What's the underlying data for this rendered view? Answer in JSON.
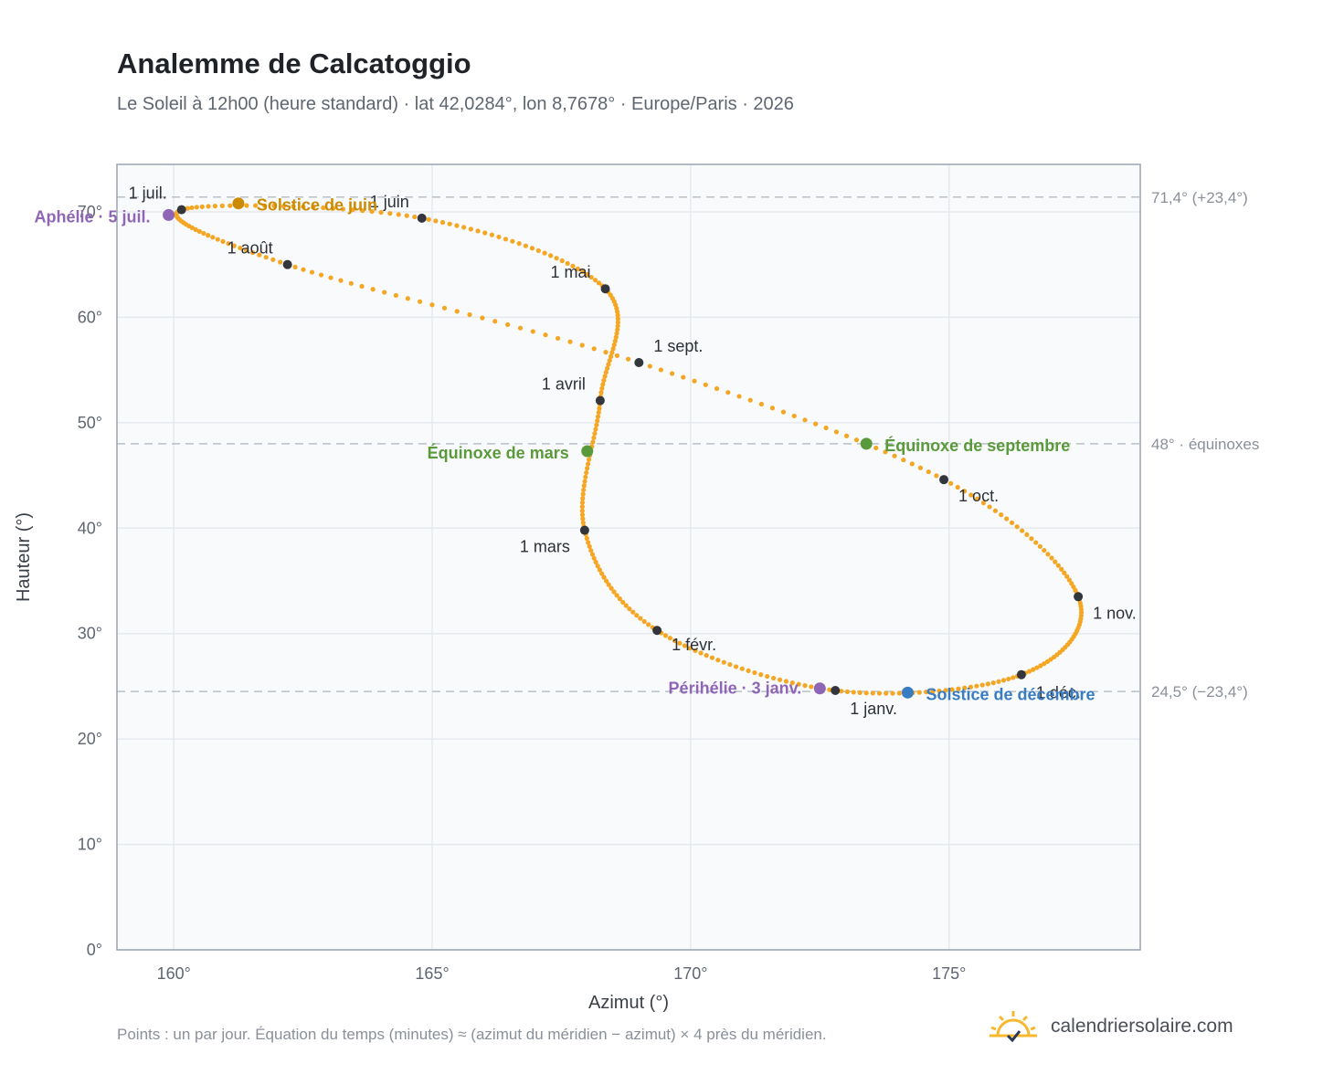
{
  "header": {
    "title": "Analemme de Calcatoggio",
    "subtitle": "Le Soleil à 12h00 (heure standard) · lat 42,0284°, lon 8,7678° · Europe/Paris · 2026"
  },
  "footer": {
    "note": "Points : un par jour. Équation du temps (minutes) ≈ (azimut du méridien − azimut) × 4 près du méridien.",
    "brand": "calendriersolaire.com"
  },
  "colors": {
    "curve": "#f5a623",
    "month_dot": "#33373d",
    "solstice_june": "#cc8a00",
    "solstice_december": "#3a7cc2",
    "equinox": "#5a9a3a",
    "apsis": "#8f65b5",
    "reference_line": "#b9c0c8",
    "plot_bg": "#f8fafc",
    "grid": "#e6eaee",
    "frame": "#9aa4b2"
  },
  "chart_data": {
    "type": "scatter",
    "xlabel": "Azimut (°)",
    "ylabel": "Hauteur (°)",
    "xlim": [
      158.9,
      178.7
    ],
    "ylim": [
      0,
      74.5
    ],
    "x_ticks": [
      160,
      165,
      170,
      175
    ],
    "x_tick_labels": [
      "160°",
      "165°",
      "170°",
      "175°"
    ],
    "y_ticks": [
      0,
      10,
      20,
      30,
      40,
      50,
      60,
      70
    ],
    "y_tick_labels": [
      "0°",
      "10°",
      "20°",
      "30°",
      "40°",
      "50°",
      "60°",
      "70°"
    ],
    "grid": true,
    "reference_lines": [
      {
        "y": 71.4,
        "label": "71,4° (+23,4°)"
      },
      {
        "y": 48.0,
        "label": "48° · équinoxes"
      },
      {
        "y": 24.5,
        "label": "24,5° (−23,4°)"
      }
    ],
    "months": [
      {
        "label": "1 janv.",
        "azimuth": 172.8,
        "altitude": 24.6
      },
      {
        "label": "1 févr.",
        "azimuth": 169.35,
        "altitude": 30.3
      },
      {
        "label": "1 mars",
        "azimuth": 167.95,
        "altitude": 39.8
      },
      {
        "label": "1 avril",
        "azimuth": 168.25,
        "altitude": 52.1
      },
      {
        "label": "1 mai",
        "azimuth": 168.35,
        "altitude": 62.7
      },
      {
        "label": "1 juin",
        "azimuth": 164.8,
        "altitude": 69.4
      },
      {
        "label": "1 juil.",
        "azimuth": 160.15,
        "altitude": 70.2
      },
      {
        "label": "1 août",
        "azimuth": 162.2,
        "altitude": 65.0
      },
      {
        "label": "1 sept.",
        "azimuth": 169.0,
        "altitude": 55.7
      },
      {
        "label": "1 oct.",
        "azimuth": 174.9,
        "altitude": 44.6
      },
      {
        "label": "1 nov.",
        "azimuth": 177.5,
        "altitude": 33.5
      },
      {
        "label": "1 déc.",
        "azimuth": 176.4,
        "altitude": 26.1
      }
    ],
    "events": [
      {
        "label": "Solstice de juin",
        "azimuth": 161.25,
        "altitude": 70.8,
        "color": "#cc8a00"
      },
      {
        "label": "Équinoxe de mars",
        "azimuth": 168.0,
        "altitude": 47.3,
        "color": "#5a9a3a"
      },
      {
        "label": "Équinoxe de septembre",
        "azimuth": 173.4,
        "altitude": 48.0,
        "color": "#5a9a3a"
      },
      {
        "label": "Solstice de décembre",
        "azimuth": 174.2,
        "altitude": 24.4,
        "color": "#3a7cc2"
      },
      {
        "label": "Aphélie · 5 juil.",
        "azimuth": 159.9,
        "altitude": 69.7,
        "color": "#8f65b5"
      },
      {
        "label": "Périhélie · 3 janv.",
        "azimuth": 172.5,
        "altitude": 24.8,
        "color": "#8f65b5"
      }
    ]
  }
}
